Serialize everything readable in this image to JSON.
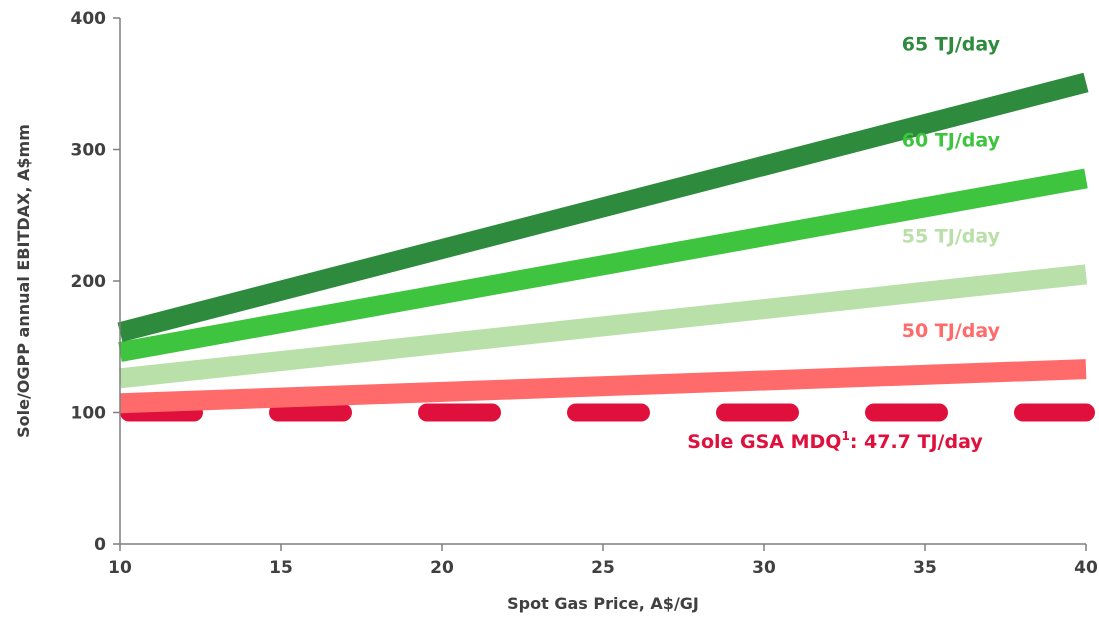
{
  "chart_data": {
    "type": "line",
    "xlabel": "Spot Gas Price, A$/GJ",
    "ylabel": "Sole/OGPP annual EBITDAX, A$mm",
    "xlim": [
      10,
      40
    ],
    "ylim": [
      0,
      400
    ],
    "x_ticks": [
      10,
      15,
      20,
      25,
      30,
      35,
      40
    ],
    "y_ticks": [
      0,
      100,
      200,
      300,
      400
    ],
    "grid": false,
    "series": [
      {
        "name": "65 TJ/day",
        "color": "#2e8b3e",
        "x": [
          10,
          40
        ],
        "y": [
          161,
          351
        ]
      },
      {
        "name": "60 TJ/day",
        "color": "#3ec43e",
        "x": [
          10,
          40
        ],
        "y": [
          146,
          278
        ]
      },
      {
        "name": "55 TJ/day",
        "color": "#b8e0a8",
        "x": [
          10,
          40
        ],
        "y": [
          126,
          205
        ]
      },
      {
        "name": "50 TJ/day",
        "color": "#ff6b6b",
        "x": [
          10,
          40
        ],
        "y": [
          107,
          133
        ]
      }
    ],
    "reference_line": {
      "label": "Sole GSA MDQ",
      "superscript": "1",
      "value_text": ": 47.7 TJ/day",
      "y": 100,
      "color": "#e0103c",
      "style": "dashed"
    }
  }
}
